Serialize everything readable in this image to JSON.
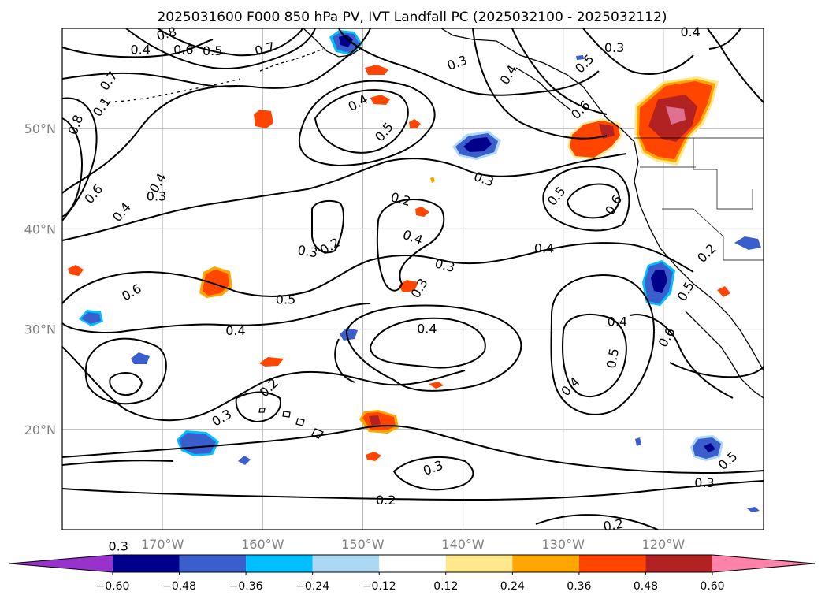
{
  "title": "2025031600 F000 850 hPa PV, IVT Landfall PC (2025032100 - 2025032112)",
  "map": {
    "lon_range": [
      -180,
      -110
    ],
    "lat_range": [
      10,
      60
    ],
    "lat_ticks": [
      {
        "value": 20,
        "label": "20°N"
      },
      {
        "value": 30,
        "label": "30°N"
      },
      {
        "value": 40,
        "label": "40°N"
      },
      {
        "value": 50,
        "label": "50°N"
      }
    ],
    "lon_ticks": [
      {
        "value": -170,
        "label": "170°W"
      },
      {
        "value": -160,
        "label": "160°W"
      },
      {
        "value": -150,
        "label": "150°W"
      },
      {
        "value": -140,
        "label": "140°W"
      },
      {
        "value": -130,
        "label": "130°W"
      },
      {
        "value": -120,
        "label": "120°W"
      }
    ],
    "grid": true
  },
  "colorbar": {
    "extend": "both",
    "boundaries": [
      -0.72,
      -0.6,
      -0.48,
      -0.36,
      -0.24,
      -0.12,
      0.12,
      0.24,
      0.36,
      0.48,
      0.6,
      0.72
    ],
    "colors": [
      "#9932cc",
      "#00008b",
      "#3a5fcd",
      "#00bfff",
      "#add8f5",
      "#ffffff",
      "#ffe88c",
      "#ffa500",
      "#ff4500",
      "#b22222",
      "#ff82ab"
    ],
    "tick_labels": [
      "−0.60",
      "−0.48",
      "−0.36",
      "−0.24",
      "−0.12",
      "0.12",
      "0.24",
      "0.36",
      "0.48",
      "0.60"
    ]
  },
  "contour_labels": [
    {
      "text": "0.4",
      "lon": -172.2,
      "lat": 57.9,
      "rot": 0
    },
    {
      "text": "0.8",
      "lon": -169.6,
      "lat": 59.5,
      "rot": -15
    },
    {
      "text": "0.6",
      "lon": -167.9,
      "lat": 57.9,
      "rot": 0
    },
    {
      "text": "0.5",
      "lon": -165.0,
      "lat": 57.8,
      "rot": 0
    },
    {
      "text": "0.7",
      "lon": -159.8,
      "lat": 58.0,
      "rot": -15
    },
    {
      "text": "0.4",
      "lon": -174.1,
      "lat": 41.7,
      "rot": -50
    },
    {
      "text": "0.7",
      "lon": -175.4,
      "lat": 54.8,
      "rot": -55
    },
    {
      "text": "0.1",
      "lon": -176.1,
      "lat": 52.2,
      "rot": -55
    },
    {
      "text": "0.8",
      "lon": -178.7,
      "lat": 50.4,
      "rot": -70
    },
    {
      "text": "0.6",
      "lon": -176.9,
      "lat": 43.5,
      "rot": -50
    },
    {
      "text": "0.4",
      "lon": -170.5,
      "lat": 44.6,
      "rot": -60
    },
    {
      "text": "0.3",
      "lon": -155.5,
      "lat": 37.8,
      "rot": 10
    },
    {
      "text": "0.3",
      "lon": -174.4,
      "lat": 8.4,
      "rot": 0
    },
    {
      "text": "0.3",
      "lon": -137.9,
      "lat": 45.0,
      "rot": 20
    },
    {
      "text": "0.4",
      "lon": -150.5,
      "lat": 52.6,
      "rot": -30
    },
    {
      "text": "0.5",
      "lon": -147.9,
      "lat": 49.7,
      "rot": -50
    },
    {
      "text": "0.3",
      "lon": -140.6,
      "lat": 56.6,
      "rot": -20
    },
    {
      "text": "0.4",
      "lon": -135.5,
      "lat": 55.4,
      "rot": -60
    },
    {
      "text": "0.5",
      "lon": -127.9,
      "lat": 56.5,
      "rot": -45
    },
    {
      "text": "0.6",
      "lon": -128.3,
      "lat": 51.9,
      "rot": -45
    },
    {
      "text": "0.3",
      "lon": -124.9,
      "lat": 58.1,
      "rot": 0
    },
    {
      "text": "0.4",
      "lon": -117.3,
      "lat": 59.7,
      "rot": 0
    },
    {
      "text": "0.2",
      "lon": -146.2,
      "lat": 43.0,
      "rot": 15
    },
    {
      "text": "0.3",
      "lon": -170.6,
      "lat": 43.3,
      "rot": 0
    },
    {
      "text": "0.5",
      "lon": -130.7,
      "lat": 43.3,
      "rot": -50
    },
    {
      "text": "0.6",
      "lon": -125.0,
      "lat": 42.4,
      "rot": -60
    },
    {
      "text": "0.4",
      "lon": -131.9,
      "lat": 38.1,
      "rot": 0
    },
    {
      "text": "0.2",
      "lon": -115.7,
      "lat": 37.6,
      "rot": -45
    },
    {
      "text": "0.2",
      "lon": -153.3,
      "lat": 38.3,
      "rot": -30
    },
    {
      "text": "0.4",
      "lon": -145.0,
      "lat": 39.2,
      "rot": 20
    },
    {
      "text": "0.3",
      "lon": -141.8,
      "lat": 36.4,
      "rot": 15
    },
    {
      "text": "0.3",
      "lon": -144.4,
      "lat": 34.1,
      "rot": -60
    },
    {
      "text": "0.6",
      "lon": -173.1,
      "lat": 33.7,
      "rot": -30
    },
    {
      "text": "0.5",
      "lon": -157.7,
      "lat": 33.0,
      "rot": 0
    },
    {
      "text": "0.4",
      "lon": -162.7,
      "lat": 29.9,
      "rot": 0
    },
    {
      "text": "0.4",
      "lon": -143.6,
      "lat": 30.1,
      "rot": 0
    },
    {
      "text": "0.4",
      "lon": -124.6,
      "lat": 30.8,
      "rot": 0
    },
    {
      "text": "0.5",
      "lon": -125.1,
      "lat": 27.1,
      "rot": -80
    },
    {
      "text": "0.6",
      "lon": -119.7,
      "lat": 29.2,
      "rot": -60
    },
    {
      "text": "0.5",
      "lon": -117.8,
      "lat": 33.8,
      "rot": -60
    },
    {
      "text": "0.2",
      "lon": -159.4,
      "lat": 24.2,
      "rot": -45
    },
    {
      "text": "0.3",
      "lon": -164.1,
      "lat": 21.2,
      "rot": -30
    },
    {
      "text": "0.4",
      "lon": -129.3,
      "lat": 24.3,
      "rot": -45
    },
    {
      "text": "0.3",
      "lon": -143.0,
      "lat": 16.2,
      "rot": -20
    },
    {
      "text": "0.2",
      "lon": -147.7,
      "lat": 13.0,
      "rot": 0
    },
    {
      "text": "0.5",
      "lon": -113.6,
      "lat": 16.9,
      "rot": -40
    },
    {
      "text": "0.3",
      "lon": -115.9,
      "lat": 14.7,
      "rot": 0
    },
    {
      "text": "0.2",
      "lon": -125.0,
      "lat": 10.5,
      "rot": -10
    }
  ]
}
